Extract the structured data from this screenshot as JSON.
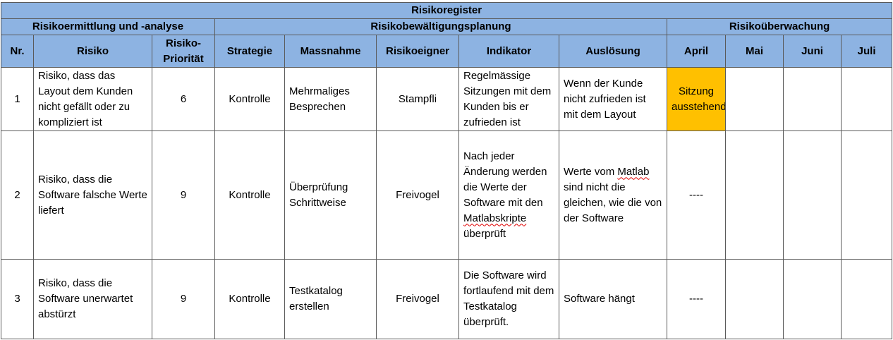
{
  "title": "Risikoregister",
  "groups": {
    "analysis": "Risikoermittlung und -analyse",
    "planning": "Risikobewältigungsplanung",
    "monitoring": "Risikoüberwachung"
  },
  "columns": {
    "nr": "Nr.",
    "risk": "Risiko",
    "priority_line1": "Risiko-",
    "priority_line2": "Priorität",
    "strategy": "Strategie",
    "measure": "Massnahme",
    "owner": "Risikoeigner",
    "indicator": "Indikator",
    "trigger": "Auslösung",
    "april": "April",
    "may": "Mai",
    "june": "Juni",
    "july": "Juli"
  },
  "rows": [
    {
      "nr": "1",
      "risk": "Risiko, dass das Layout dem Kunden nicht gefällt oder zu kompliziert ist",
      "priority": "6",
      "strategy": "Kontrolle",
      "measure": "Mehrmaliges Besprechen",
      "owner": "Stampfli",
      "indicator": "Regelmässige Sitzungen mit dem Kunden bis er zufrieden ist",
      "trigger": "Wenn der Kunde nicht zufrieden ist mit dem Layout",
      "april": "Sitzung ausstehend",
      "may": "",
      "june": "",
      "july": ""
    },
    {
      "nr": "2",
      "risk": "Risiko, dass die Software falsche Werte liefert",
      "priority": "9",
      "strategy": "Kontrolle",
      "measure": "Überprüfung Schrittweise",
      "owner": "Freivogel",
      "indicator_a": "Nach jeder Änderung werden die Werte der Software mit den",
      "indicator_b": "Matlabskripte",
      "indicator_c": "überprüft",
      "trigger_a": "Werte vom",
      "trigger_b": "Matlab",
      "trigger_c": "sind nicht die gleichen, wie die von der Software",
      "april": "----",
      "may": "",
      "june": "",
      "july": ""
    },
    {
      "nr": "3",
      "risk": "Risiko, dass die Software unerwartet abstürzt",
      "priority": "9",
      "strategy": "Kontrolle",
      "measure": "Testkatalog erstellen",
      "owner": "Freivogel",
      "indicator": "Die Software wird fortlaufend mit dem Testkatalog überprüft.",
      "trigger": "Software hängt",
      "april": "----",
      "may": "",
      "june": "",
      "july": ""
    }
  ],
  "colors": {
    "header": "#8db3e2",
    "pending": "#ffc000"
  }
}
